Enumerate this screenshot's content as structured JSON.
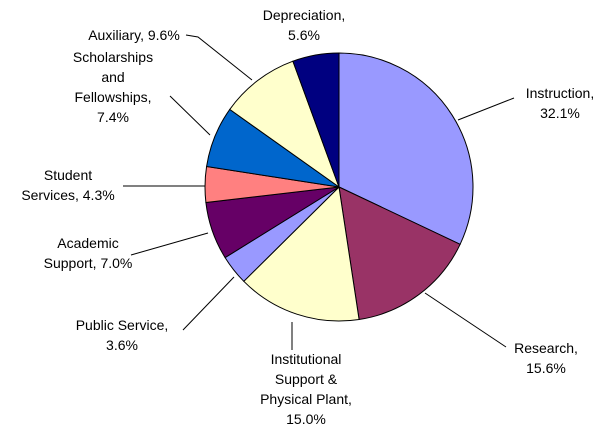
{
  "chart_data": {
    "type": "pie",
    "title": "",
    "slices": [
      {
        "label_lines": [
          "Instruction,",
          "32.1%"
        ],
        "category": "Instruction",
        "value": 32.1,
        "color": "#9999ff"
      },
      {
        "label_lines": [
          "Research,",
          "15.6%"
        ],
        "category": "Research",
        "value": 15.6,
        "color": "#993366"
      },
      {
        "label_lines": [
          "Institutional",
          "Support &",
          "Physical Plant,",
          "15.0%"
        ],
        "category": "Institutional Support & Physical Plant",
        "value": 15.0,
        "color": "#ffffcc"
      },
      {
        "label_lines": [
          "Public Service,",
          "3.6%"
        ],
        "category": "Public Service",
        "value": 3.6,
        "color": "#9999ff"
      },
      {
        "label_lines": [
          "Academic",
          "Support, 7.0%"
        ],
        "category": "Academic Support",
        "value": 7.0,
        "color": "#660066"
      },
      {
        "label_lines": [
          "Student",
          "Services, 4.3%"
        ],
        "category": "Student Services",
        "value": 4.3,
        "color": "#ff8080"
      },
      {
        "label_lines": [
          "Scholarships",
          "and",
          "Fellowships,",
          "7.4%"
        ],
        "category": "Scholarships and Fellowships",
        "value": 7.4,
        "color": "#0066cc"
      },
      {
        "label_lines": [
          "Auxiliary, 9.6%"
        ],
        "category": "Auxiliary",
        "value": 9.6,
        "color": "#ffffcc"
      },
      {
        "label_lines": [
          "Depreciation,",
          "5.6%"
        ],
        "category": "Depreciation",
        "value": 5.6,
        "color": "#000080"
      }
    ]
  }
}
